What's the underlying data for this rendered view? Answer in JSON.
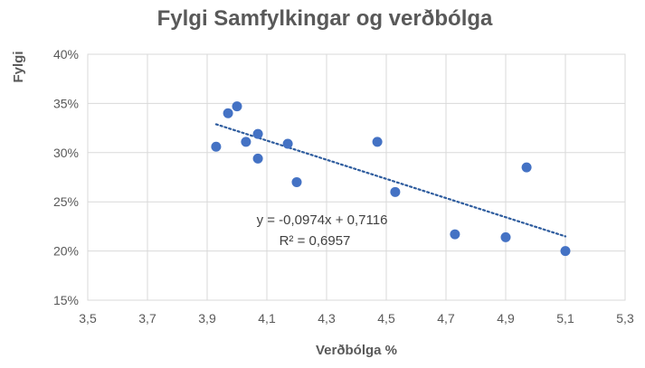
{
  "chart_data": {
    "type": "scatter",
    "title": "Fylgi Samfylkingar og verðbólga",
    "xlabel": "Verðbólga %",
    "ylabel": "Fylgi",
    "xlim": [
      3.5,
      5.3
    ],
    "ylim": [
      0.15,
      0.4
    ],
    "x_ticks": [
      3.5,
      3.7,
      3.9,
      4.1,
      4.3,
      4.5,
      4.7,
      4.9,
      5.1,
      5.3
    ],
    "x_tick_labels": [
      "3,5",
      "3,7",
      "3,9",
      "4,1",
      "4,3",
      "4,5",
      "4,7",
      "4,9",
      "5,1",
      "5,3"
    ],
    "y_ticks": [
      0.15,
      0.2,
      0.25,
      0.3,
      0.35,
      0.4
    ],
    "y_tick_labels": [
      "15%",
      "20%",
      "25%",
      "30%",
      "35%",
      "40%"
    ],
    "grid": true,
    "series": [
      {
        "name": "Fylgi",
        "color": "#4472C4",
        "points": [
          {
            "x": 3.93,
            "y": 0.306
          },
          {
            "x": 3.97,
            "y": 0.34
          },
          {
            "x": 4.0,
            "y": 0.347
          },
          {
            "x": 4.03,
            "y": 0.311
          },
          {
            "x": 4.07,
            "y": 0.319
          },
          {
            "x": 4.07,
            "y": 0.294
          },
          {
            "x": 4.17,
            "y": 0.309
          },
          {
            "x": 4.2,
            "y": 0.27
          },
          {
            "x": 4.47,
            "y": 0.311
          },
          {
            "x": 4.53,
            "y": 0.26
          },
          {
            "x": 4.73,
            "y": 0.217
          },
          {
            "x": 4.9,
            "y": 0.214
          },
          {
            "x": 4.97,
            "y": 0.285
          },
          {
            "x": 5.1,
            "y": 0.2
          }
        ]
      }
    ],
    "trendline": {
      "type": "linear",
      "slope": -0.0974,
      "intercept": 0.7116,
      "x_range": [
        3.93,
        5.1
      ],
      "color": "#2E5C9E",
      "equation_label": "y = -0,0974x + 0,7116",
      "r2_label": "R² = 0,6957"
    }
  }
}
